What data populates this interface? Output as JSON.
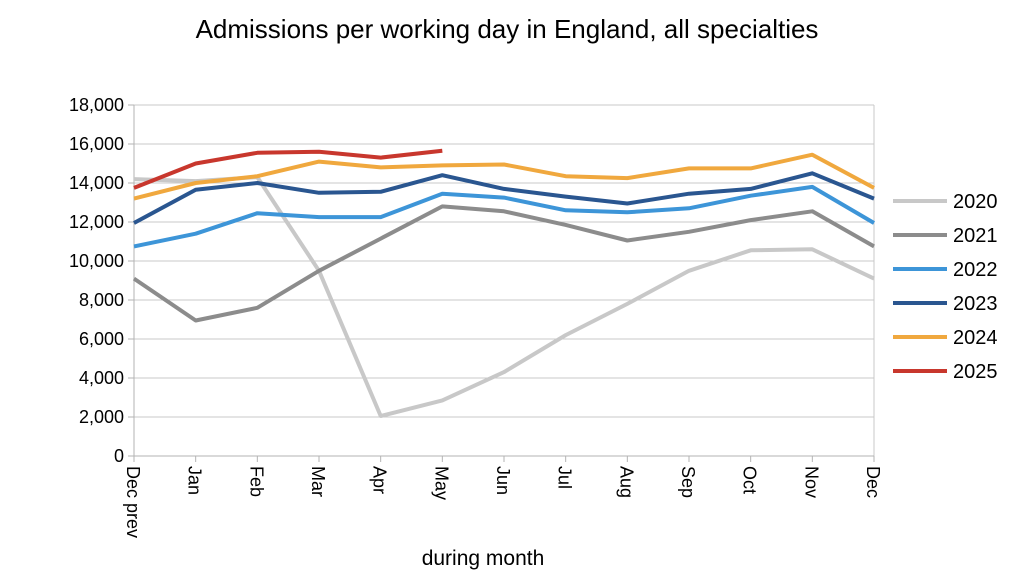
{
  "chart_data": {
    "type": "line",
    "title": "Admissions per working day in England, all specialties",
    "xlabel": "during month",
    "ylabel": "",
    "categories": [
      "Dec prev",
      "Jan",
      "Feb",
      "Mar",
      "Apr",
      "May",
      "Jun",
      "Jul",
      "Aug",
      "Sep",
      "Oct",
      "Nov",
      "Dec"
    ],
    "ylim": [
      0,
      18000
    ],
    "yticks": [
      0,
      2000,
      4000,
      6000,
      8000,
      10000,
      12000,
      14000,
      16000,
      18000
    ],
    "ytick_labels": [
      "0",
      "2,000",
      "4,000",
      "6,000",
      "8,000",
      "10,000",
      "12,000",
      "14,000",
      "16,000",
      "18,000"
    ],
    "grid": true,
    "legend_position": "right",
    "series": [
      {
        "name": "2020",
        "color": "#c8c8c8",
        "values": [
          14200,
          14100,
          14300,
          9500,
          2050,
          2850,
          4300,
          6200,
          7800,
          9500,
          10550,
          10600,
          9100
        ]
      },
      {
        "name": "2021",
        "color": "#8c8c8c",
        "values": [
          9100,
          6950,
          7600,
          9500,
          11150,
          12800,
          12550,
          11850,
          11050,
          11500,
          12100,
          12550,
          10750
        ]
      },
      {
        "name": "2022",
        "color": "#3d95d8",
        "values": [
          10750,
          11400,
          12450,
          12250,
          12250,
          13450,
          13250,
          12600,
          12500,
          12700,
          13350,
          13800,
          11950
        ]
      },
      {
        "name": "2023",
        "color": "#2a5690",
        "values": [
          11950,
          13650,
          14000,
          13500,
          13550,
          14400,
          13700,
          13300,
          12950,
          13450,
          13700,
          14500,
          13200
        ]
      },
      {
        "name": "2024",
        "color": "#f0a83e",
        "values": [
          13200,
          14000,
          14350,
          15100,
          14800,
          14900,
          14950,
          14350,
          14250,
          14750,
          14750,
          15450,
          13750
        ]
      },
      {
        "name": "2025",
        "color": "#c8372d",
        "values": [
          13750,
          15000,
          15550,
          15600,
          15300,
          15650,
          null,
          null,
          null,
          null,
          null,
          null,
          null
        ]
      }
    ]
  }
}
